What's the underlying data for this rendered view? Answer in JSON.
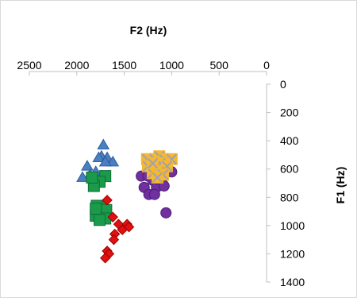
{
  "chart_data": {
    "type": "scatter",
    "xlabel": "F2 (Hz)",
    "ylabel": "F1 (Hz)",
    "x_reversed": true,
    "y_reversed": true,
    "xlim": [
      0,
      2500
    ],
    "ylim": [
      0,
      1400
    ],
    "x_ticks": [
      "2500",
      "2000",
      "1500",
      "1000",
      "500",
      "0"
    ],
    "y_ticks": [
      "0",
      "200",
      "400",
      "600",
      "800",
      "1000",
      "1200",
      "1400"
    ],
    "x_tick_values": [
      2500,
      2000,
      1500,
      1000,
      500,
      0
    ],
    "y_tick_values": [
      0,
      200,
      400,
      600,
      800,
      1000,
      1200,
      1400
    ],
    "x_axis_position": "top",
    "y_axis_position": "right",
    "grid": false,
    "legend": "none",
    "series": [
      {
        "marker": "triangle",
        "color": "#4a7fc1",
        "points": [
          {
            "x": 1720,
            "y": 430
          },
          {
            "x": 1740,
            "y": 510
          },
          {
            "x": 1770,
            "y": 520
          },
          {
            "x": 1680,
            "y": 520
          },
          {
            "x": 1620,
            "y": 550
          },
          {
            "x": 1700,
            "y": 550
          },
          {
            "x": 1890,
            "y": 580
          },
          {
            "x": 1800,
            "y": 620
          },
          {
            "x": 1860,
            "y": 640
          },
          {
            "x": 1940,
            "y": 660
          },
          {
            "x": 1740,
            "y": 650
          },
          {
            "x": 1800,
            "y": 690
          },
          {
            "x": 1700,
            "y": 660
          }
        ]
      },
      {
        "marker": "square",
        "color": "#1a9a4a",
        "points": [
          {
            "x": 1700,
            "y": 650
          },
          {
            "x": 1760,
            "y": 690
          },
          {
            "x": 1820,
            "y": 720
          },
          {
            "x": 1840,
            "y": 660
          },
          {
            "x": 1740,
            "y": 870
          },
          {
            "x": 1790,
            "y": 860
          },
          {
            "x": 1690,
            "y": 890
          },
          {
            "x": 1800,
            "y": 930
          },
          {
            "x": 1700,
            "y": 950
          },
          {
            "x": 1760,
            "y": 960
          },
          {
            "x": 1800,
            "y": 880
          }
        ]
      },
      {
        "marker": "diamond",
        "color": "#e01010",
        "points": [
          {
            "x": 1680,
            "y": 820
          },
          {
            "x": 1620,
            "y": 940
          },
          {
            "x": 1560,
            "y": 990
          },
          {
            "x": 1470,
            "y": 990
          },
          {
            "x": 1520,
            "y": 1030
          },
          {
            "x": 1450,
            "y": 1010
          },
          {
            "x": 1600,
            "y": 1060
          },
          {
            "x": 1610,
            "y": 1100
          },
          {
            "x": 1680,
            "y": 1180
          },
          {
            "x": 1660,
            "y": 1200
          },
          {
            "x": 1700,
            "y": 1230
          }
        ]
      },
      {
        "marker": "circle",
        "color": "#7030a0",
        "points": [
          {
            "x": 1320,
            "y": 650
          },
          {
            "x": 1250,
            "y": 650
          },
          {
            "x": 1200,
            "y": 680
          },
          {
            "x": 1100,
            "y": 700
          },
          {
            "x": 1000,
            "y": 620
          },
          {
            "x": 1290,
            "y": 730
          },
          {
            "x": 1160,
            "y": 730
          },
          {
            "x": 1080,
            "y": 720
          },
          {
            "x": 1240,
            "y": 780
          },
          {
            "x": 1180,
            "y": 780
          },
          {
            "x": 1060,
            "y": 910
          },
          {
            "x": 1160,
            "y": 670
          }
        ]
      },
      {
        "marker": "x-square",
        "color": "#f5b82e",
        "edge": "#a0a0b8",
        "points": [
          {
            "x": 1260,
            "y": 530
          },
          {
            "x": 1180,
            "y": 530
          },
          {
            "x": 1130,
            "y": 510
          },
          {
            "x": 1080,
            "y": 530
          },
          {
            "x": 1000,
            "y": 530
          },
          {
            "x": 1250,
            "y": 580
          },
          {
            "x": 1170,
            "y": 590
          },
          {
            "x": 1120,
            "y": 560
          },
          {
            "x": 1050,
            "y": 580
          },
          {
            "x": 1200,
            "y": 630
          },
          {
            "x": 1130,
            "y": 620
          },
          {
            "x": 1090,
            "y": 640
          },
          {
            "x": 1150,
            "y": 660
          },
          {
            "x": 1200,
            "y": 560
          }
        ]
      }
    ]
  }
}
